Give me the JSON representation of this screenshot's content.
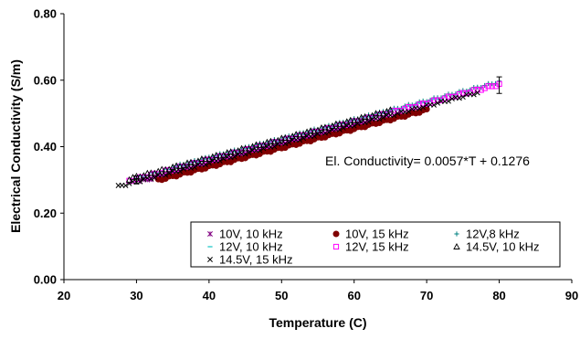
{
  "chart_data": {
    "type": "scatter",
    "title": "",
    "xlabel": "Temperature (C)",
    "ylabel": "Electrical Conductivity (S/m)",
    "xlim": [
      20,
      90
    ],
    "ylim": [
      0.0,
      0.8
    ],
    "xticks": [
      "20",
      "30",
      "40",
      "50",
      "60",
      "70",
      "80",
      "90"
    ],
    "yticks": [
      "0.00",
      "0.20",
      "0.40",
      "0.60",
      "0.80"
    ],
    "grid": false,
    "legend_position": "bottom-right",
    "annotation": "El. Conductivity= 0.0057*T + 0.1276",
    "fit": {
      "slope": 0.0057,
      "intercept": 0.1276
    },
    "series": [
      {
        "name": "10V, 10 kHz",
        "marker": "asterisk",
        "color": "#800080",
        "x_range": [
          30.5,
          62
        ],
        "offset": -0.006
      },
      {
        "name": "10V, 15 kHz",
        "marker": "circle",
        "color": "#800000",
        "x_range": [
          33,
          70
        ],
        "offset": -0.016
      },
      {
        "name": "12V,8 kHz",
        "marker": "plus",
        "color": "#008080",
        "x_range": [
          35,
          80
        ],
        "offset": 0.012
      },
      {
        "name": "12V, 10 kHz",
        "marker": "dash",
        "color": "#33CCCC",
        "x_range": [
          30,
          72
        ],
        "offset": 0.008
      },
      {
        "name": "12V, 15 kHz",
        "marker": "square",
        "color": "#FF00FF",
        "x_range": [
          29,
          80
        ],
        "offset": 0.004
      },
      {
        "name": "14.5V, 10 kHz",
        "marker": "triangle",
        "color": "#000000",
        "x_range": [
          29,
          65
        ],
        "offset": 0.01
      },
      {
        "name": "14.5V, 15 kHz",
        "marker": "x",
        "color": "#000000",
        "x_range": [
          27.5,
          77
        ],
        "offset": -0.004
      }
    ],
    "error_bars": [
      {
        "x": 30,
        "y": 0.3,
        "err": 0.012
      },
      {
        "x": 80,
        "y": 0.585,
        "err": 0.025
      }
    ]
  }
}
